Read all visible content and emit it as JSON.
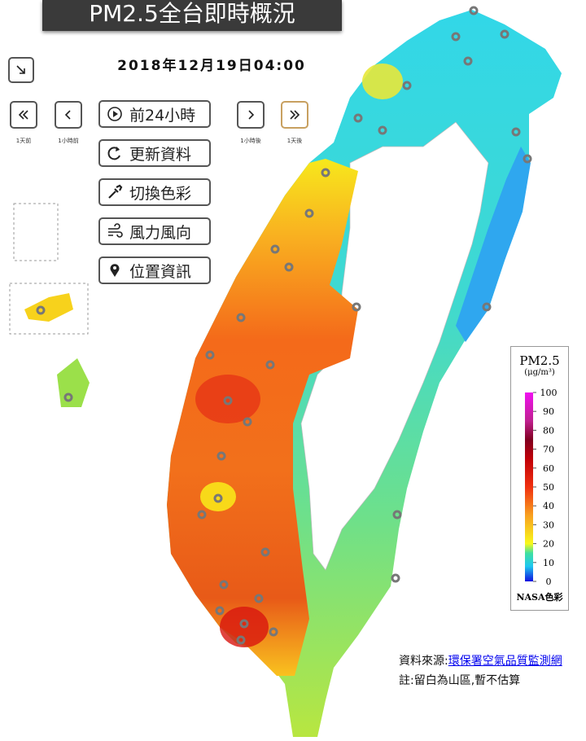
{
  "header": {
    "title": "PM2.5全台即時概況",
    "datetime": "2018年12月19日04:00"
  },
  "controls": {
    "play": "前24小時",
    "refresh": "更新資料",
    "palette": "切換色彩",
    "wind": "風力風向",
    "location": "位置資訊"
  },
  "nav": {
    "day_back": "1天前",
    "hour_back": "1小時前",
    "hour_forward": "1小時後",
    "day_forward": "1天後"
  },
  "legend": {
    "title": "PM2.5",
    "unit": "(μg/m³)",
    "ticks": [
      100,
      90,
      80,
      70,
      60,
      50,
      40,
      30,
      20,
      10,
      0
    ],
    "scheme": "NASA色彩"
  },
  "footer": {
    "source_label": "資料來源:",
    "source_link": "環保署空氣品質監測網",
    "note": "註:留白為山區,暫不估算"
  }
}
